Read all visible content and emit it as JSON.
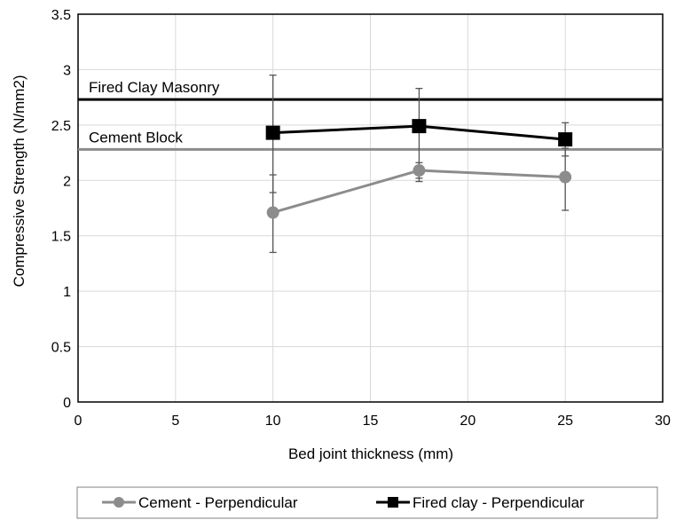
{
  "chart_data": {
    "type": "line",
    "title": "",
    "xlabel": "Bed joint thickness (mm)",
    "ylabel": "Compressive Strength (N/mm2)",
    "xlim": [
      0,
      30
    ],
    "ylim": [
      0,
      3.5
    ],
    "x_ticks": [
      0,
      5,
      10,
      15,
      20,
      25,
      30
    ],
    "y_ticks": [
      0,
      0.5,
      1,
      1.5,
      2,
      2.5,
      3,
      3.5
    ],
    "x_tick_labels": [
      "0",
      "5",
      "10",
      "15",
      "20",
      "25",
      "30"
    ],
    "y_tick_labels": [
      "0",
      "0.5",
      "1",
      "1.5",
      "2",
      "2.5",
      "3",
      "3.5"
    ],
    "grid": true,
    "legend_position": "bottom",
    "series": [
      {
        "name": "Cement - Perpendicular",
        "color": "#8c8c8c",
        "marker": "circle",
        "x": [
          10,
          17.5,
          25
        ],
        "y": [
          1.71,
          2.09,
          2.03
        ],
        "err_low": [
          1.35,
          1.99,
          1.73
        ],
        "err_high": [
          2.05,
          2.16,
          2.29
        ]
      },
      {
        "name": "Fired clay - Perpendicular",
        "color": "#000000",
        "marker": "square",
        "x": [
          10,
          17.5,
          25
        ],
        "y": [
          2.43,
          2.49,
          2.37
        ],
        "err_low": [
          1.89,
          2.02,
          2.22
        ],
        "err_high": [
          2.95,
          2.83,
          2.52
        ]
      }
    ],
    "reference_lines": [
      {
        "label": "Fired Clay Masonry",
        "y": 2.73,
        "color": "#000000"
      },
      {
        "label": "Cement Block",
        "y": 2.28,
        "color": "#8c8c8c"
      }
    ]
  }
}
